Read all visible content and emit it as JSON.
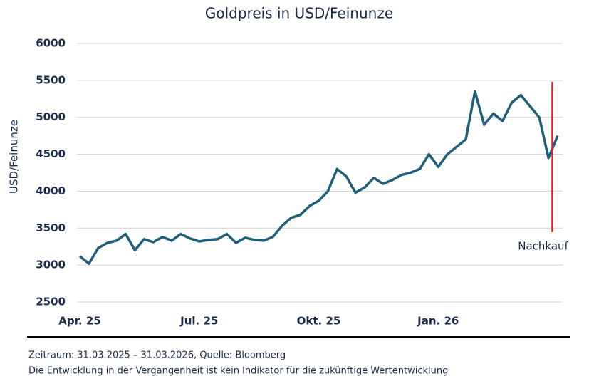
{
  "chart_data": {
    "type": "line",
    "title": "Goldpreis in USD/Feinunze",
    "ylabel": "USD/Feinunze",
    "categories": [
      "Apr. 25",
      null,
      null,
      null,
      null,
      null,
      null,
      null,
      null,
      null,
      null,
      null,
      null,
      "Jul. 25",
      null,
      null,
      null,
      null,
      null,
      null,
      null,
      null,
      null,
      null,
      null,
      null,
      "Okt. 25",
      null,
      null,
      null,
      null,
      null,
      null,
      null,
      null,
      null,
      null,
      null,
      null,
      "Jan. 26",
      null,
      null,
      null,
      null,
      null,
      null,
      null,
      null,
      null,
      null,
      null,
      null,
      null
    ],
    "series": [
      {
        "name": "Goldpreis",
        "color": "#1f5f7a",
        "values": [
          3120,
          3020,
          3230,
          3300,
          3330,
          3420,
          3200,
          3350,
          3310,
          3380,
          3330,
          3420,
          3360,
          3320,
          3340,
          3350,
          3420,
          3300,
          3370,
          3340,
          3330,
          3380,
          3530,
          3640,
          3680,
          3800,
          3870,
          4000,
          4300,
          4200,
          3980,
          4050,
          4180,
          4100,
          4150,
          4220,
          4250,
          4300,
          4500,
          4330,
          4500,
          4600,
          4700,
          5350,
          4900,
          5050,
          4950,
          5200,
          5300,
          5150,
          5000,
          4450,
          4750
        ]
      }
    ],
    "ylim": [
      2500,
      6000
    ],
    "yticks": [
      2500,
      3000,
      3500,
      4000,
      4500,
      5000,
      5500,
      6000
    ],
    "grid": true,
    "annotation": "Nachkauf",
    "annotation_color": "#e02020"
  },
  "footer": {
    "line1": "Zeitraum: 31.03.2025 – 31.03.2026, Quelle: Bloomberg",
    "line2": "Die Entwicklung in der Vergangenheit ist kein Indikator für die zukünftige Wertentwicklung"
  }
}
